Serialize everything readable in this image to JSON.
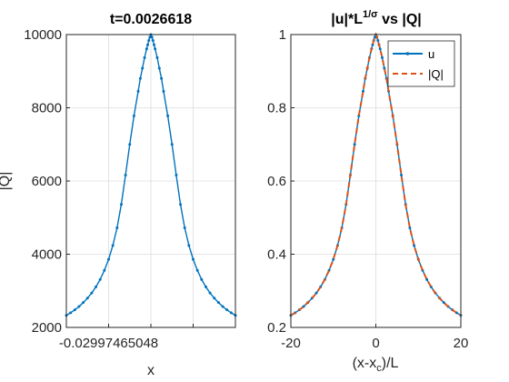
{
  "chart_data": [
    {
      "type": "line",
      "title": "t=0.0026618",
      "xlabel": "x",
      "ylabel": "|Q|",
      "ylim": [
        2000,
        10000
      ],
      "yticks": [
        2000,
        4000,
        6000,
        8000,
        10000
      ],
      "xtick_labels": [
        "-0.02997465048"
      ],
      "grid": true,
      "series": [
        {
          "color": "#0072BD",
          "marker": "point",
          "x": [
            -20,
            -19,
            -18,
            -17,
            -16,
            -15,
            -14,
            -13,
            -12,
            -11,
            -10,
            -9,
            -8,
            -7,
            -6,
            -5,
            -4,
            -3,
            -2.5,
            -2,
            -1.5,
            -1,
            -0.75,
            -0.5,
            -0.25,
            0,
            0.25,
            0.5,
            0.75,
            1,
            1.5,
            2,
            2.5,
            3,
            4,
            5,
            6,
            7,
            8,
            9,
            10,
            11,
            12,
            13,
            14,
            15,
            16,
            17,
            18,
            19,
            20
          ],
          "values": [
            2330,
            2400,
            2480,
            2570,
            2680,
            2800,
            2940,
            3110,
            3310,
            3560,
            3860,
            4240,
            4720,
            5360,
            6160,
            7000,
            7780,
            8450,
            8800,
            9080,
            9370,
            9610,
            9720,
            9840,
            9930,
            10000,
            9930,
            9840,
            9720,
            9610,
            9370,
            9080,
            8800,
            8450,
            7780,
            7000,
            6160,
            5360,
            4720,
            4240,
            3860,
            3560,
            3310,
            3110,
            2940,
            2800,
            2680,
            2570,
            2480,
            2400,
            2330
          ]
        }
      ]
    },
    {
      "type": "line",
      "title": "|u|*L^(1/σ) vs |Q|",
      "title_main": "|u|*L",
      "title_sup": "1/σ",
      "title_rest": " vs |Q|",
      "xlabel": "(x-x_c)/L",
      "xlabel_main": "(x-x",
      "xlabel_sub": "c",
      "xlabel_rest": ")/L",
      "xlim": [
        -20,
        20
      ],
      "ylim": [
        0.2,
        1
      ],
      "xticks": [
        -20,
        0,
        20
      ],
      "yticks": [
        0.2,
        0.4,
        0.6,
        0.8,
        1
      ],
      "ytick_labels": [
        "0.2",
        "0.4",
        "0.6",
        "0.8",
        "1"
      ],
      "grid": true,
      "legend": "top-right",
      "series": [
        {
          "name": "u",
          "color": "#0072BD",
          "style": "solid",
          "marker": "point",
          "x": [
            -20,
            -19,
            -18,
            -17,
            -16,
            -15,
            -14,
            -13,
            -12,
            -11,
            -10,
            -9,
            -8,
            -7,
            -6,
            -5,
            -4,
            -3,
            -2.5,
            -2,
            -1.5,
            -1,
            -0.75,
            -0.5,
            -0.25,
            0,
            0.25,
            0.5,
            0.75,
            1,
            1.5,
            2,
            2.5,
            3,
            4,
            5,
            6,
            7,
            8,
            9,
            10,
            11,
            12,
            13,
            14,
            15,
            16,
            17,
            18,
            19,
            20
          ],
          "values": [
            0.233,
            0.24,
            0.248,
            0.257,
            0.268,
            0.28,
            0.294,
            0.311,
            0.331,
            0.356,
            0.386,
            0.424,
            0.472,
            0.536,
            0.616,
            0.7,
            0.778,
            0.845,
            0.88,
            0.908,
            0.937,
            0.961,
            0.972,
            0.984,
            0.993,
            1.0,
            0.993,
            0.984,
            0.972,
            0.961,
            0.937,
            0.908,
            0.88,
            0.845,
            0.778,
            0.7,
            0.616,
            0.536,
            0.472,
            0.424,
            0.386,
            0.356,
            0.331,
            0.311,
            0.294,
            0.28,
            0.268,
            0.257,
            0.248,
            0.24,
            0.233
          ]
        },
        {
          "name": "|Q|",
          "color": "#D95319",
          "style": "dashed",
          "x": [
            -20,
            -19,
            -18,
            -17,
            -16,
            -15,
            -14,
            -13,
            -12,
            -11,
            -10,
            -9,
            -8,
            -7,
            -6,
            -5,
            -4,
            -3,
            -2.5,
            -2,
            -1.5,
            -1,
            -0.75,
            -0.5,
            -0.25,
            0,
            0.25,
            0.5,
            0.75,
            1,
            1.5,
            2,
            2.5,
            3,
            4,
            5,
            6,
            7,
            8,
            9,
            10,
            11,
            12,
            13,
            14,
            15,
            16,
            17,
            18,
            19,
            20
          ],
          "values": [
            0.233,
            0.24,
            0.248,
            0.257,
            0.268,
            0.28,
            0.294,
            0.311,
            0.331,
            0.356,
            0.386,
            0.424,
            0.472,
            0.536,
            0.616,
            0.7,
            0.778,
            0.845,
            0.88,
            0.908,
            0.937,
            0.961,
            0.972,
            0.984,
            0.993,
            1.0,
            0.993,
            0.984,
            0.972,
            0.961,
            0.937,
            0.908,
            0.88,
            0.845,
            0.778,
            0.7,
            0.616,
            0.536,
            0.472,
            0.424,
            0.386,
            0.356,
            0.331,
            0.311,
            0.294,
            0.28,
            0.268,
            0.257,
            0.248,
            0.24,
            0.233
          ]
        }
      ]
    }
  ]
}
